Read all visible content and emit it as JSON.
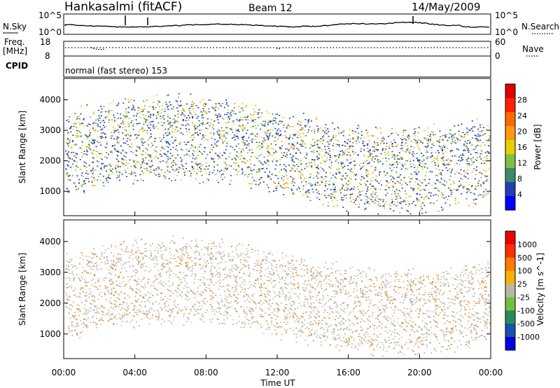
{
  "header": {
    "station": "Hankasalmi (fitACF)",
    "beam": "Beam 12",
    "date": "14/May/2009"
  },
  "noise_panel": {
    "left_label": "N.Sky",
    "left_ticks": [
      "10^5",
      "10^0"
    ],
    "right_ticks": [
      "10^5",
      "10^0"
    ],
    "right_label": "N.Search"
  },
  "freq_panel": {
    "label_line1": "Freq.",
    "label_line2": "[MHz]",
    "left_ticks": [
      "18",
      "8"
    ],
    "right_ticks": [
      "60",
      "0"
    ],
    "right_label": "Nave"
  },
  "cpid": {
    "label": "CPID",
    "value": "normal (fast stereo) 153"
  },
  "colors": {
    "power": [
      "#0000ff",
      "#2040b0",
      "#3a8a6a",
      "#80c040",
      "#e8d000",
      "#ff9a10",
      "#ff6a00",
      "#ff2000",
      "#dd0000"
    ],
    "velocity": [
      "#0000e0",
      "#1a50b0",
      "#2a8a5a",
      "#70c040",
      "#b8b8a8",
      "#ffb000",
      "#ff7a00",
      "#ff3000",
      "#ee0000"
    ]
  },
  "chart_data": [
    {
      "type": "heatmap",
      "name": "power",
      "ylabel": "Slant Range [km]",
      "yticks": [
        "1000",
        "2000",
        "3000",
        "4000"
      ],
      "ylim": [
        200,
        4700
      ],
      "colorbar_label": "Power [dB]",
      "colorbar_ticks": [
        "4",
        "8",
        "12",
        "16",
        "20",
        "24",
        "28"
      ],
      "colorbar_range": [
        0,
        30
      ]
    },
    {
      "type": "heatmap",
      "name": "velocity",
      "ylabel": "Slant Range [km]",
      "yticks": [
        "1000",
        "2000",
        "3000",
        "4000"
      ],
      "ylim": [
        200,
        4700
      ],
      "colorbar_label": "Velocity [m s^-1]",
      "colorbar_ticks": [
        "1000",
        "500",
        "100",
        "25",
        "-25",
        "-100",
        "-500",
        "-1000"
      ]
    }
  ],
  "time_axis": {
    "ticks": [
      "00:00",
      "04:00",
      "08:00",
      "12:00",
      "16:00",
      "20:00",
      "00:00"
    ],
    "xlabel": "Time UT",
    "xlim_hours": [
      0,
      24
    ]
  }
}
